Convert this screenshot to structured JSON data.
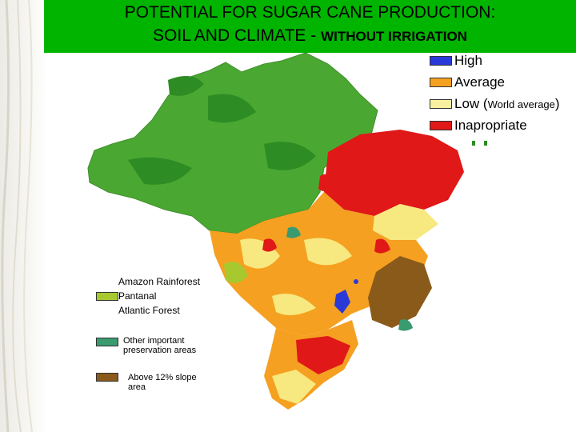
{
  "title": {
    "line1": "POTENTIAL FOR SUGAR CANE PRODUCTION:",
    "line2_prefix": "SOIL AND CLIMATE - ",
    "line2_bold": "WITHOUT IRRIGATION"
  },
  "legend": {
    "items": [
      {
        "label": "High",
        "color": "#2a3ad8"
      },
      {
        "label": "Average",
        "color": "#f5a020"
      },
      {
        "label_main": "Low (",
        "label_small": "World average",
        "label_end": ")",
        "color": "#f8f0a0"
      },
      {
        "label": "Inapropriate",
        "color": "#e01818"
      }
    ]
  },
  "inset_legend": {
    "biomes": [
      "Amazon Rainforest",
      "Pantanal",
      "Atlantic Forest"
    ],
    "pantanal_color": "#a8c830",
    "preservation": "Other important preservation areas",
    "preservation_color": "#3a9a70",
    "slope": "Above 12% slope area",
    "slope_color": "#8a5a1a"
  },
  "map_colors": {
    "amazon": "#4aa832",
    "amazon_dark": "#2e8c24",
    "average": "#f5a020",
    "low": "#f8e880",
    "inapropriate": "#e01818",
    "high": "#2a3ad8",
    "slope": "#8a5a1a",
    "preservation": "#3a9a70",
    "pantanal": "#a8c830"
  }
}
